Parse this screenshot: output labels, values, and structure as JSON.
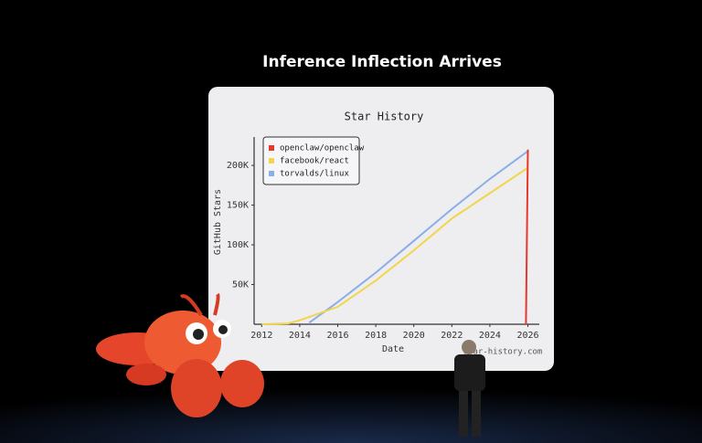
{
  "slide_title": "Inference Inflection Arrives",
  "chart_data": {
    "type": "line",
    "title": "Star History",
    "x_label": "Date",
    "y_label": "GitHub Stars",
    "watermark": "star-history.com",
    "xlim": [
      2011.6,
      2026.6
    ],
    "xticks": [
      2012,
      2014,
      2016,
      2018,
      2020,
      2022,
      2024,
      2026
    ],
    "ylim": [
      0,
      230000
    ],
    "yticks": [
      {
        "value": 50000,
        "label": "50K"
      },
      {
        "value": 100000,
        "label": "100K"
      },
      {
        "value": 150000,
        "label": "150K"
      },
      {
        "value": 200000,
        "label": "200K"
      }
    ],
    "legend": "top-left",
    "series": [
      {
        "name": "openclaw/openclaw",
        "color": "#e8372c",
        "x": [
          2025.9,
          2026.0
        ],
        "values": [
          0,
          220000
        ]
      },
      {
        "name": "facebook/react",
        "color": "#f2d54a",
        "x": [
          2012,
          2013.4,
          2014,
          2016,
          2018,
          2020,
          2022,
          2024,
          2026
        ],
        "values": [
          0,
          1000,
          5000,
          22000,
          55000,
          93000,
          133000,
          165000,
          197000
        ]
      },
      {
        "name": "torvalds/linux",
        "color": "#8aaee8",
        "x": [
          2014.5,
          2016,
          2018,
          2020,
          2022,
          2024,
          2026
        ],
        "values": [
          2000,
          28000,
          65000,
          105000,
          145000,
          183000,
          218000
        ]
      }
    ]
  }
}
